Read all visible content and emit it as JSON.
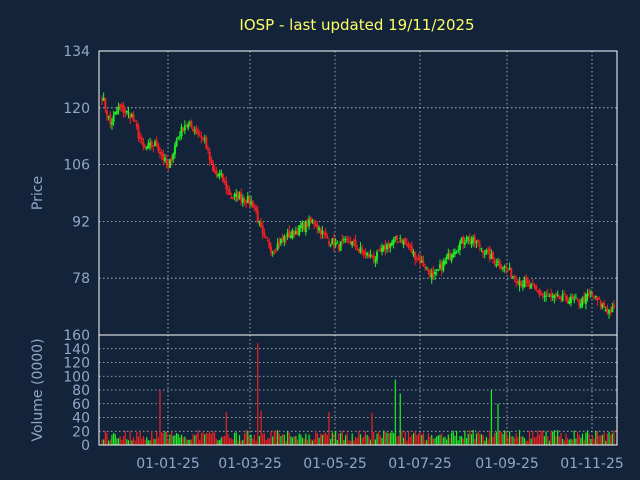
{
  "chart_data": {
    "type": "candlestick",
    "title": "IOSP - last updated 19/11/2025",
    "price_panel": {
      "ylabel": "Price",
      "ylim": [
        64,
        134
      ],
      "yticks": [
        134,
        120,
        106,
        92,
        78
      ],
      "grid": true
    },
    "volume_panel": {
      "ylabel": "Volume (0000)",
      "ylim": [
        0,
        160
      ],
      "yticks": [
        160,
        140,
        120,
        100,
        80,
        60,
        40,
        20,
        0
      ],
      "grid": true
    },
    "x_tick_labels": [
      "01-01-25",
      "01-03-25",
      "01-05-25",
      "01-07-25",
      "01-09-25",
      "01-11-25"
    ],
    "price_path_keypoints": [
      {
        "day": 0,
        "close": 123
      },
      {
        "day": 5,
        "close": 116
      },
      {
        "day": 10,
        "close": 120
      },
      {
        "day": 18,
        "close": 118
      },
      {
        "day": 25,
        "close": 110
      },
      {
        "day": 33,
        "close": 111
      },
      {
        "day": 40,
        "close": 105
      },
      {
        "day": 45,
        "close": 112
      },
      {
        "day": 50,
        "close": 116
      },
      {
        "day": 55,
        "close": 115
      },
      {
        "day": 62,
        "close": 112
      },
      {
        "day": 67,
        "close": 104
      },
      {
        "day": 72,
        "close": 103
      },
      {
        "day": 78,
        "close": 98
      },
      {
        "day": 85,
        "close": 98
      },
      {
        "day": 92,
        "close": 96
      },
      {
        "day": 97,
        "close": 88
      },
      {
        "day": 103,
        "close": 85
      },
      {
        "day": 110,
        "close": 88
      },
      {
        "day": 115,
        "close": 89
      },
      {
        "day": 122,
        "close": 91
      },
      {
        "day": 128,
        "close": 92
      },
      {
        "day": 135,
        "close": 88
      },
      {
        "day": 142,
        "close": 86
      },
      {
        "day": 150,
        "close": 87
      },
      {
        "day": 158,
        "close": 84
      },
      {
        "day": 165,
        "close": 83
      },
      {
        "day": 172,
        "close": 86
      },
      {
        "day": 180,
        "close": 88
      },
      {
        "day": 188,
        "close": 84
      },
      {
        "day": 195,
        "close": 81
      },
      {
        "day": 200,
        "close": 78
      },
      {
        "day": 205,
        "close": 81
      },
      {
        "day": 212,
        "close": 85
      },
      {
        "day": 220,
        "close": 88
      },
      {
        "day": 228,
        "close": 86
      },
      {
        "day": 235,
        "close": 83
      },
      {
        "day": 242,
        "close": 81
      },
      {
        "day": 250,
        "close": 78
      },
      {
        "day": 258,
        "close": 76
      },
      {
        "day": 265,
        "close": 74
      },
      {
        "day": 272,
        "close": 73
      },
      {
        "day": 280,
        "close": 73
      },
      {
        "day": 288,
        "close": 72
      },
      {
        "day": 295,
        "close": 74
      },
      {
        "day": 300,
        "close": 72
      },
      {
        "day": 305,
        "close": 70
      }
    ],
    "volume_spikes": [
      {
        "day": 35,
        "volume": 80
      },
      {
        "day": 75,
        "volume": 48
      },
      {
        "day": 94,
        "volume": 148
      },
      {
        "day": 96,
        "volume": 50
      },
      {
        "day": 137,
        "volume": 48
      },
      {
        "day": 163,
        "volume": 47
      },
      {
        "day": 177,
        "volume": 95
      },
      {
        "day": 180,
        "volume": 75
      },
      {
        "day": 235,
        "volume": 80
      },
      {
        "day": 239,
        "volume": 60
      }
    ],
    "colors": {
      "up": "#22ee22",
      "down": "#ee2222",
      "title": "#ffff66",
      "axis_text": "#8fa8c8",
      "background": "#13233a"
    }
  }
}
